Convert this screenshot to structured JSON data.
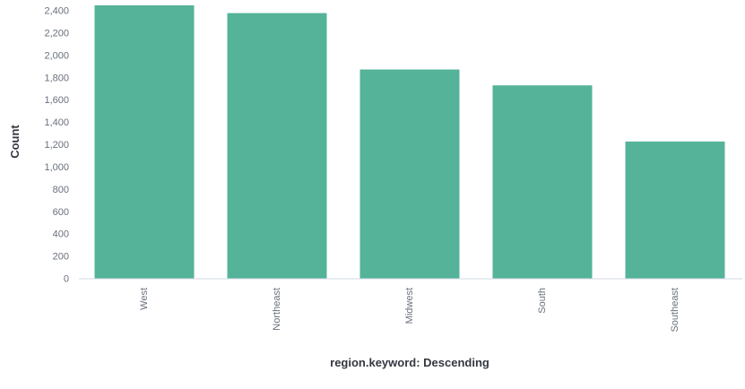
{
  "chart_data": {
    "type": "bar",
    "categories": [
      "West",
      "Northeast",
      "Midwest",
      "South",
      "Southeast"
    ],
    "values": [
      2445,
      2375,
      1870,
      1728,
      1225
    ],
    "xlabel": "region.keyword: Descending",
    "ylabel": "Count",
    "ylim": [
      0,
      2400
    ],
    "yticks": [
      0,
      200,
      400,
      600,
      800,
      1000,
      1200,
      1400,
      1600,
      1800,
      2000,
      2200,
      2400
    ],
    "ytick_labels": [
      "0",
      "200",
      "400",
      "600",
      "800",
      "1,000",
      "1,200",
      "1,400",
      "1,600",
      "1,800",
      "2,000",
      "2,200",
      "2,400"
    ],
    "grid": false,
    "bar_color": "#54b399"
  }
}
